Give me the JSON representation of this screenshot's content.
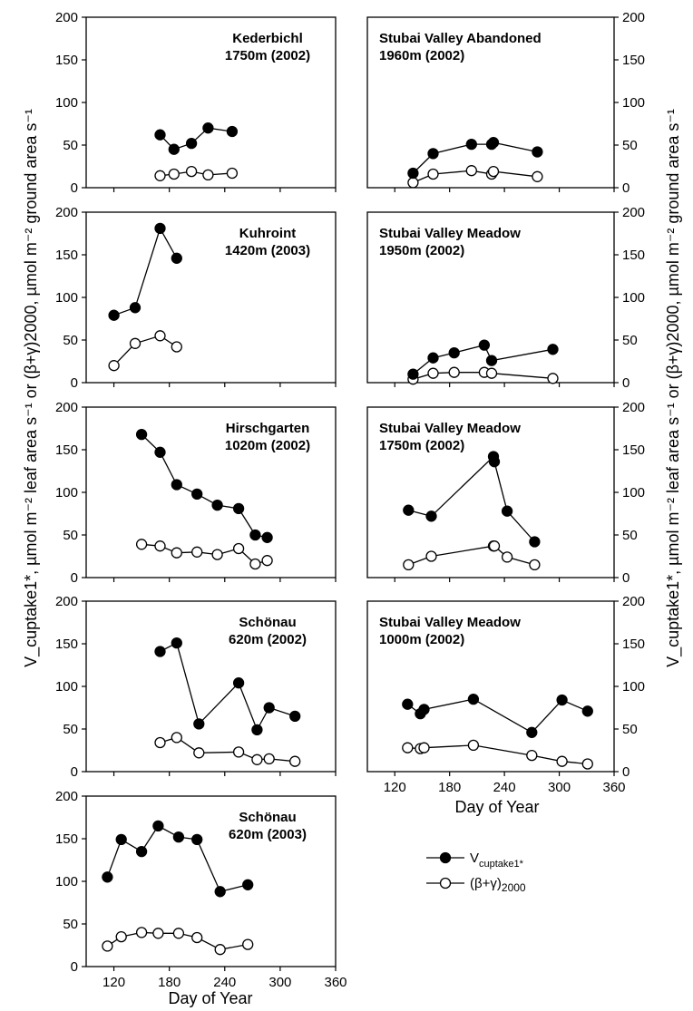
{
  "figure": {
    "x_axis_label": "Day of Year",
    "y_axis_label_left": "V_cuptake1*, µmol m⁻² leaf area s⁻¹ or (β+γ)2000, µmol m⁻² ground area s⁻¹",
    "y_axis_label_right": "V_cuptake1*, µmol m⁻² leaf area s⁻¹ or (β+γ)2000, µmol m⁻² ground area s⁻¹",
    "legend": {
      "filled_symbol": "filled-circle",
      "open_symbol": "open-circle",
      "filled_label_main": "V",
      "filled_label_sub": "cuptake1*",
      "open_label_main": "(β+γ)",
      "open_label_sub": "2000"
    },
    "colors": {
      "line": "#000000",
      "filled_marker": "#000000",
      "open_marker": "#ffffff"
    }
  },
  "chart_data": [
    {
      "type": "line",
      "column": "left",
      "row": 0,
      "title_line1": "Kederbichl",
      "title_line2": "1750m (2002)",
      "xlim": [
        90,
        360
      ],
      "ylim": [
        0,
        200
      ],
      "xticks": [
        120,
        180,
        240,
        300,
        360
      ],
      "yticks": [
        0,
        50,
        100,
        150,
        200
      ],
      "series": [
        {
          "marker": "filled",
          "x": [
            170,
            185,
            204,
            222,
            248
          ],
          "y": [
            62,
            45,
            52,
            70,
            66
          ]
        },
        {
          "marker": "open",
          "x": [
            170,
            185,
            204,
            222,
            248
          ],
          "y": [
            14,
            16,
            19,
            15,
            17
          ]
        }
      ]
    },
    {
      "type": "line",
      "column": "left",
      "row": 1,
      "title_line1": "Kuhroint",
      "title_line2": "1420m (2003)",
      "xlim": [
        90,
        360
      ],
      "ylim": [
        0,
        200
      ],
      "xticks": [
        120,
        180,
        240,
        300,
        360
      ],
      "yticks": [
        0,
        50,
        100,
        150,
        200
      ],
      "series": [
        {
          "marker": "filled",
          "x": [
            120,
            143,
            170,
            188
          ],
          "y": [
            79,
            88,
            181,
            146
          ]
        },
        {
          "marker": "open",
          "x": [
            120,
            143,
            170,
            188
          ],
          "y": [
            20,
            46,
            55,
            42
          ]
        }
      ]
    },
    {
      "type": "line",
      "column": "left",
      "row": 2,
      "title_line1": "Hirschgarten",
      "title_line2": "1020m (2002)",
      "xlim": [
        90,
        360
      ],
      "ylim": [
        0,
        200
      ],
      "xticks": [
        120,
        180,
        240,
        300,
        360
      ],
      "yticks": [
        0,
        50,
        100,
        150,
        200
      ],
      "series": [
        {
          "marker": "filled",
          "x": [
            150,
            170,
            188,
            210,
            232,
            255,
            273,
            286
          ],
          "y": [
            168,
            147,
            109,
            98,
            85,
            81,
            50,
            47
          ]
        },
        {
          "marker": "open",
          "x": [
            150,
            170,
            188,
            210,
            232,
            255,
            273,
            286
          ],
          "y": [
            39,
            37,
            29,
            30,
            27,
            34,
            16,
            20
          ]
        }
      ]
    },
    {
      "type": "line",
      "column": "left",
      "row": 3,
      "title_line1": "Schönau",
      "title_line2": "620m (2002)",
      "xlim": [
        90,
        360
      ],
      "ylim": [
        0,
        200
      ],
      "xticks": [
        120,
        180,
        240,
        300,
        360
      ],
      "yticks": [
        0,
        50,
        100,
        150,
        200
      ],
      "series": [
        {
          "marker": "filled",
          "x": [
            170,
            188,
            212,
            255,
            275,
            288,
            316
          ],
          "y": [
            141,
            151,
            56,
            104,
            49,
            75,
            65
          ]
        },
        {
          "marker": "open",
          "x": [
            170,
            188,
            212,
            255,
            275,
            288,
            316
          ],
          "y": [
            34,
            40,
            22,
            23,
            14,
            15,
            12
          ]
        }
      ]
    },
    {
      "type": "line",
      "column": "left",
      "row": 4,
      "title_line1": "Schönau",
      "title_line2": "620m (2003)",
      "xlim": [
        90,
        360
      ],
      "ylim": [
        0,
        200
      ],
      "xticks": [
        120,
        180,
        240,
        300,
        360
      ],
      "yticks": [
        0,
        50,
        100,
        150,
        200
      ],
      "series": [
        {
          "marker": "filled",
          "x": [
            113,
            128,
            150,
            168,
            190,
            210,
            235,
            265
          ],
          "y": [
            105,
            149,
            135,
            165,
            152,
            149,
            88,
            96
          ]
        },
        {
          "marker": "open",
          "x": [
            113,
            128,
            150,
            168,
            190,
            210,
            235,
            265
          ],
          "y": [
            24,
            35,
            40,
            39,
            39,
            34,
            20,
            26
          ]
        }
      ]
    },
    {
      "type": "line",
      "column": "right",
      "row": 0,
      "title_line1": "Stubai Valley Abandoned",
      "title_line2": "1960m (2002)",
      "xlim": [
        90,
        360
      ],
      "ylim": [
        0,
        200
      ],
      "xticks": [
        120,
        180,
        240,
        300,
        360
      ],
      "yticks": [
        0,
        50,
        100,
        150,
        200
      ],
      "series": [
        {
          "marker": "filled",
          "x": [
            140,
            162,
            204,
            226,
            228,
            276
          ],
          "y": [
            17,
            40,
            51,
            51,
            53,
            42
          ]
        },
        {
          "marker": "open",
          "x": [
            140,
            162,
            204,
            226,
            228,
            276
          ],
          "y": [
            6,
            16,
            20,
            16,
            19,
            13
          ]
        }
      ]
    },
    {
      "type": "line",
      "column": "right",
      "row": 1,
      "title_line1": "Stubai Valley Meadow",
      "title_line2": "1950m (2002)",
      "xlim": [
        90,
        360
      ],
      "ylim": [
        0,
        200
      ],
      "xticks": [
        120,
        180,
        240,
        300,
        360
      ],
      "yticks": [
        0,
        50,
        100,
        150,
        200
      ],
      "series": [
        {
          "marker": "filled",
          "x": [
            140,
            162,
            185,
            218,
            226,
            293
          ],
          "y": [
            10,
            29,
            35,
            44,
            26,
            39
          ]
        },
        {
          "marker": "open",
          "x": [
            140,
            162,
            185,
            218,
            226,
            293
          ],
          "y": [
            4,
            11,
            12,
            12,
            11,
            5
          ]
        }
      ]
    },
    {
      "type": "line",
      "column": "right",
      "row": 2,
      "title_line1": "Stubai Valley Meadow",
      "title_line2": "1750m (2002)",
      "xlim": [
        90,
        360
      ],
      "ylim": [
        0,
        200
      ],
      "xticks": [
        120,
        180,
        240,
        300,
        360
      ],
      "yticks": [
        0,
        50,
        100,
        150,
        200
      ],
      "series": [
        {
          "marker": "filled",
          "x": [
            135,
            160,
            228,
            229,
            243,
            273
          ],
          "y": [
            79,
            72,
            142,
            136,
            78,
            42
          ]
        },
        {
          "marker": "open",
          "x": [
            135,
            160,
            228,
            229,
            243,
            273
          ],
          "y": [
            15,
            25,
            37,
            37,
            24,
            15
          ]
        }
      ]
    },
    {
      "type": "line",
      "column": "right",
      "row": 3,
      "title_line1": "Stubai Valley Meadow",
      "title_line2": "1000m (2002)",
      "xlim": [
        90,
        360
      ],
      "ylim": [
        0,
        200
      ],
      "xticks": [
        120,
        180,
        240,
        300,
        360
      ],
      "yticks": [
        0,
        50,
        100,
        150,
        200
      ],
      "series": [
        {
          "marker": "filled",
          "x": [
            134,
            148,
            152,
            206,
            270,
            303,
            331
          ],
          "y": [
            79,
            68,
            73,
            85,
            46,
            84,
            71
          ]
        },
        {
          "marker": "open",
          "x": [
            134,
            148,
            152,
            206,
            270,
            303,
            331
          ],
          "y": [
            28,
            27,
            28,
            31,
            19,
            12,
            9
          ]
        }
      ]
    }
  ]
}
